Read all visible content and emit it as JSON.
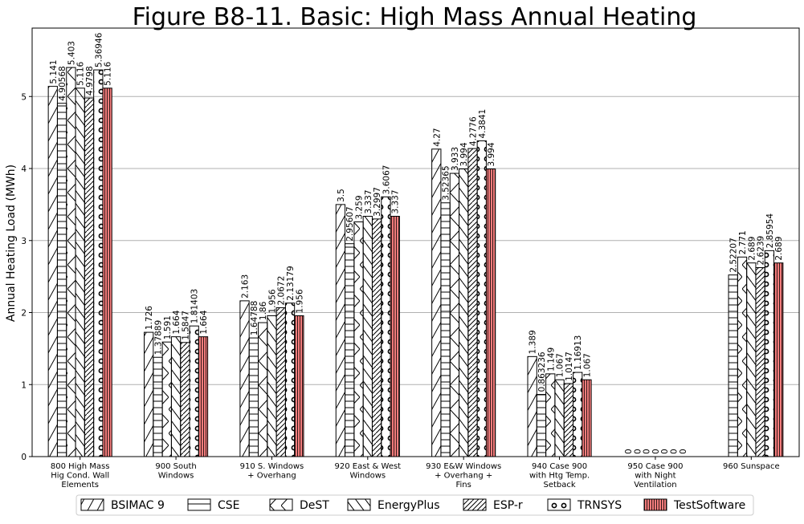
{
  "chart_data": {
    "type": "bar",
    "title": "Figure B8-11.  Basic: High Mass Annual Heating",
    "ylabel": "Annual Heating Load (MWh)",
    "xlabel": "",
    "ylim": [
      0,
      5.95
    ],
    "yticks": [
      0,
      1,
      2,
      3,
      4,
      5
    ],
    "grid": "horizontal",
    "legend_position": "bottom",
    "categories": [
      [
        "800 High Mass",
        "Hig Cond. Wall",
        "Elements"
      ],
      [
        "900 South",
        "Windows"
      ],
      [
        "910 S. Windows",
        "+ Overhang"
      ],
      [
        "920 East & West",
        "Windows"
      ],
      [
        "930 E&W Windows",
        "+ Overhang +",
        "Fins"
      ],
      [
        "940 Case 900",
        "with Htg Temp.",
        "Setback"
      ],
      [
        "950 Case 900",
        "with Night",
        "Ventilation"
      ],
      [
        "960 Sunspace"
      ]
    ],
    "series": [
      {
        "name": "BSIMAC 9",
        "pattern": "slash",
        "color": "#ffffff",
        "values": [
          5.141,
          1.726,
          2.163,
          3.5,
          4.27,
          1.389,
          0,
          null
        ],
        "labels": [
          "5.141",
          "1.726",
          "2.163",
          "3.5",
          "4.27",
          "1.389",
          "0",
          ""
        ]
      },
      {
        "name": "CSE",
        "pattern": "hlines",
        "color": "#ffffff",
        "values": [
          4.90568,
          1.37889,
          1.64788,
          2.95607,
          3.52365,
          0.863236,
          0,
          2.52207
        ],
        "labels": [
          "4.90568",
          "1.37889",
          "1.64788",
          "2.95607",
          "3.52365",
          "0.863236",
          "0",
          "2.52207"
        ]
      },
      {
        "name": "DeST",
        "pattern": "cross",
        "color": "#ffffff",
        "values": [
          5.403,
          1.591,
          1.86,
          3.259,
          3.933,
          1.149,
          0,
          2.771
        ],
        "labels": [
          "5.403",
          "1.591",
          "1.86",
          "3.259",
          "3.933",
          "1.149",
          "0",
          "2.771"
        ]
      },
      {
        "name": "EnergyPlus",
        "pattern": "backslash",
        "color": "#ffffff",
        "values": [
          5.116,
          1.664,
          1.956,
          3.337,
          3.994,
          1.067,
          0,
          2.689
        ],
        "labels": [
          "5.116",
          "1.664",
          "1.956",
          "3.337",
          "3.994",
          "1.067",
          "0",
          "2.689"
        ]
      },
      {
        "name": "ESP-r",
        "pattern": "dslash",
        "color": "#ffffff",
        "values": [
          4.9798,
          1.5847,
          2.0672,
          3.2997,
          4.2776,
          1.0147,
          0,
          2.6239
        ],
        "labels": [
          "4.9798",
          "1.5847",
          "2.0672",
          "3.2997",
          "4.2776",
          "1.0147",
          "0",
          "2.6239"
        ]
      },
      {
        "name": "TRNSYS",
        "pattern": "circles",
        "color": "#ffffff",
        "values": [
          5.36946,
          1.81403,
          2.13179,
          3.6067,
          4.3841,
          1.16913,
          0,
          2.85954
        ],
        "labels": [
          "5.36946",
          "1.81403",
          "2.13179",
          "3.6067",
          "4.3841",
          "1.16913",
          "0",
          "2.85954"
        ]
      },
      {
        "name": "TestSoftware",
        "pattern": "vlines",
        "color": "#f47c7c",
        "values": [
          5.116,
          1.664,
          1.956,
          3.337,
          3.994,
          1.067,
          0,
          2.689
        ],
        "labels": [
          "5.116",
          "1.664",
          "1.956",
          "3.337",
          "3.994",
          "1.067",
          "0",
          "2.689"
        ]
      }
    ]
  }
}
